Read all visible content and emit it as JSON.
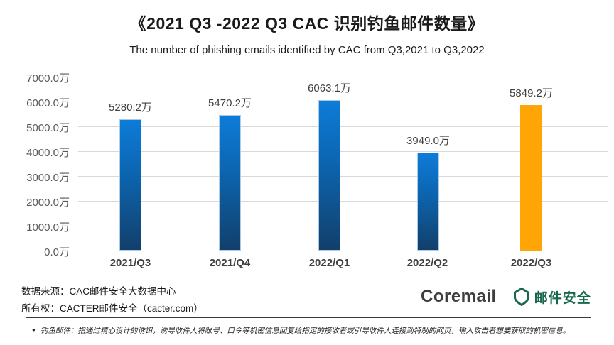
{
  "page": {
    "title": "《2021 Q3 -2022 Q3 CAC 识别钓鱼邮件数量》",
    "subtitle": "The number of phishing emails identified by CAC from Q3,2021 to  Q3,2022"
  },
  "chart_data": {
    "type": "bar",
    "title": "《2021 Q3 -2022 Q3 CAC 识别钓鱼邮件数量》",
    "subtitle": "The number of phishing emails identified by CAC from Q3,2021 to  Q3,2022",
    "categories": [
      "2021/Q3",
      "2021/Q4",
      "2022/Q1",
      "2022/Q2",
      "2022/Q3"
    ],
    "values": [
      5280.2,
      5470.2,
      6063.1,
      3949.0,
      5849.2
    ],
    "data_labels": [
      "5280.2万",
      "5470.2万",
      "6063.1万",
      "3949.0万",
      "5849.2万"
    ],
    "unit": "万",
    "xlabel": "",
    "ylabel": "",
    "ylim": [
      0,
      7000
    ],
    "ytick_interval": 1000,
    "yticks": [
      "7000.0万",
      "6000.0万",
      "5000.0万",
      "4000.0万",
      "3000.0万",
      "2000.0万",
      "1000.0万",
      "0.0万"
    ],
    "grid": true,
    "legend": false,
    "highlight_index": 4,
    "colors": {
      "bar_gradient_top": "#0d7cd9",
      "bar_gradient_bottom": "#123f6b",
      "highlight_bar": "#ffa506",
      "gridline": "#d9d9d9",
      "axis_label": "#595959",
      "category_label": "#404040"
    }
  },
  "footer": {
    "source_line": "数据来源：CAC邮件安全大数据中心",
    "ownership_line": "所有权：CACTER邮件安全（cacter.com）",
    "coremail_logo_text": "Coremail",
    "mailsec_logo_text": "邮件安全",
    "logo_green": "#17684c"
  },
  "note": {
    "bullet": "●",
    "text": "钓鱼邮件：指通过精心设计的诱饵，诱导收件人将账号、口令等机密信息回复给指定的接收者或引导收件人连接到特制的网页，输入攻击者想要获取的机密信息。"
  }
}
